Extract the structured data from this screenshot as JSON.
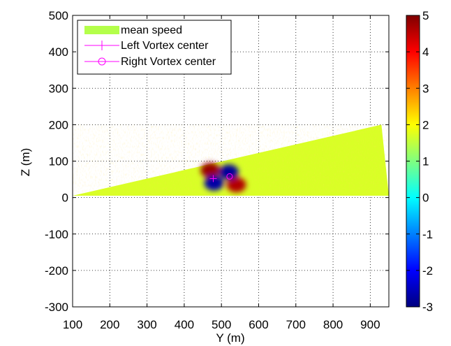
{
  "chart_data": {
    "type": "heatmap",
    "title": "",
    "xlabel": "Y (m)",
    "ylabel": "Z (m)",
    "xlim": [
      100,
      950
    ],
    "ylim": [
      -300,
      500
    ],
    "xticks": [
      100,
      200,
      300,
      400,
      500,
      600,
      700,
      800,
      900
    ],
    "yticks": [
      -300,
      -200,
      -100,
      0,
      100,
      200,
      300,
      400,
      500
    ],
    "grid": true,
    "colormap": "jet",
    "colorbar": {
      "min": -3,
      "max": 5,
      "ticks": [
        -3,
        -2,
        -1,
        0,
        1,
        2,
        3,
        4,
        5
      ]
    },
    "domain_polygon": [
      [
        100,
        5
      ],
      [
        930,
        200
      ],
      [
        950,
        5
      ]
    ],
    "background_value": 1.7,
    "vortex_blobs": [
      {
        "y": 470,
        "z": 75,
        "value": 4.8
      },
      {
        "y": 540,
        "z": 35,
        "value": 4.6
      },
      {
        "y": 520,
        "z": 70,
        "value": -2.8
      },
      {
        "y": 480,
        "z": 40,
        "value": -2.7
      }
    ],
    "vortex_centers": [
      {
        "series": "Left Vortex center",
        "y": 478,
        "z": 52
      },
      {
        "series": "Right Vortex center",
        "y": 522,
        "z": 58
      }
    ],
    "legend": {
      "placement": "top-left",
      "entries": [
        {
          "label": "mean speed",
          "style": "patch",
          "color": "#b4ff4a"
        },
        {
          "label": "Left Vortex center",
          "style": "line-plus",
          "color": "#ff00ff"
        },
        {
          "label": "Right Vortex center",
          "style": "line-circle",
          "color": "#ff00ff"
        }
      ]
    }
  }
}
